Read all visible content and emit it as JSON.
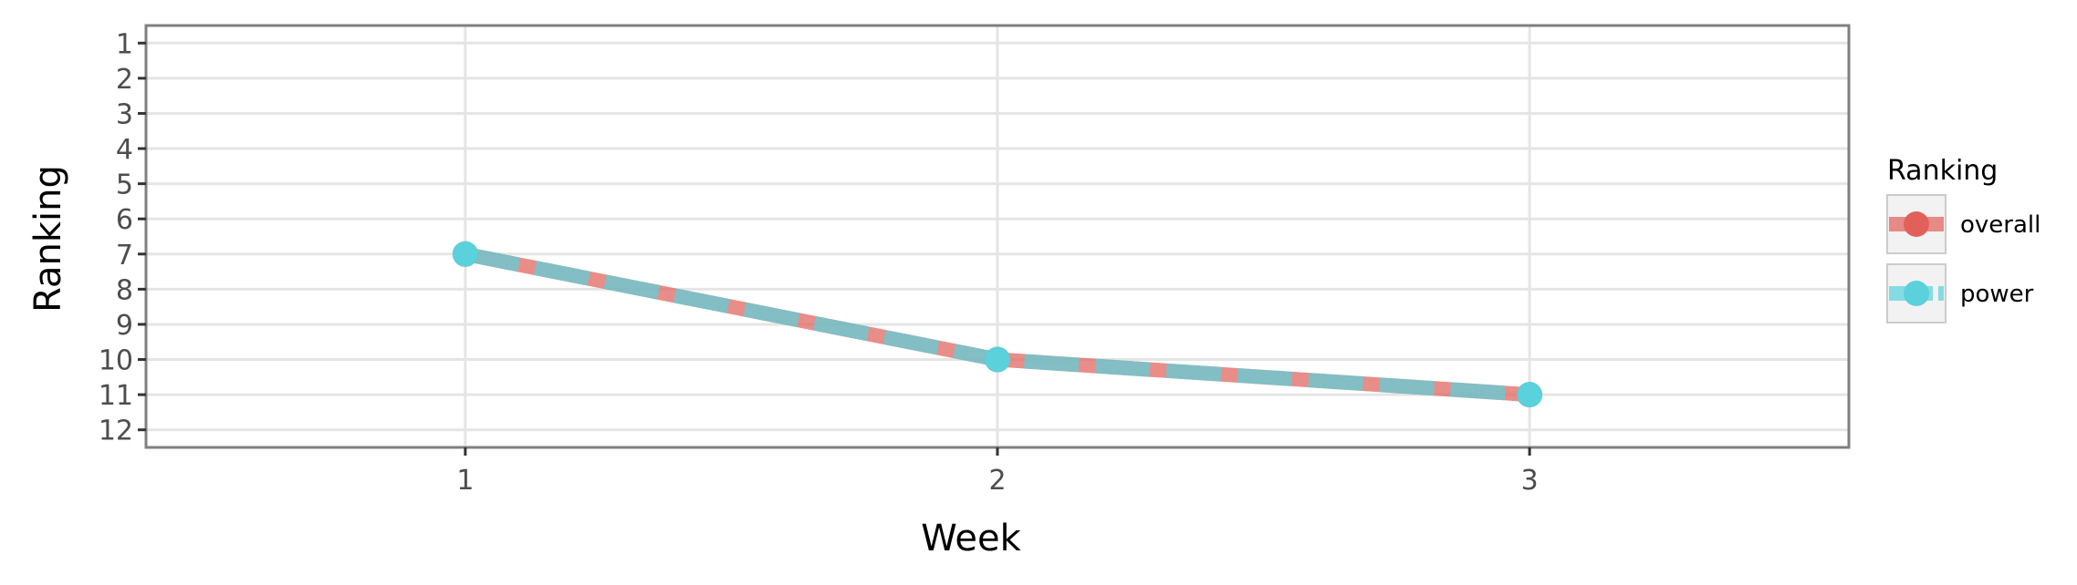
{
  "chart_data": {
    "type": "line",
    "title": "",
    "xlabel": "Week",
    "ylabel": "Ranking",
    "x": [
      1,
      2,
      3
    ],
    "xlim": [
      0.4,
      3.6
    ],
    "ylim": [
      12.5,
      0.5
    ],
    "y_reversed": true,
    "x_ticks": [
      1,
      2,
      3
    ],
    "y_ticks": [
      1,
      2,
      3,
      4,
      5,
      6,
      7,
      8,
      9,
      10,
      11,
      12
    ],
    "grid": true,
    "legend": {
      "title": "Ranking",
      "position": "right"
    },
    "series": [
      {
        "name": "overall",
        "values": [
          7,
          10,
          11
        ],
        "color": "#e1615a",
        "line_style": "solid"
      },
      {
        "name": "power",
        "values": [
          7,
          10,
          11
        ],
        "color": "#5ad1db",
        "line_style": "dashed"
      }
    ]
  }
}
